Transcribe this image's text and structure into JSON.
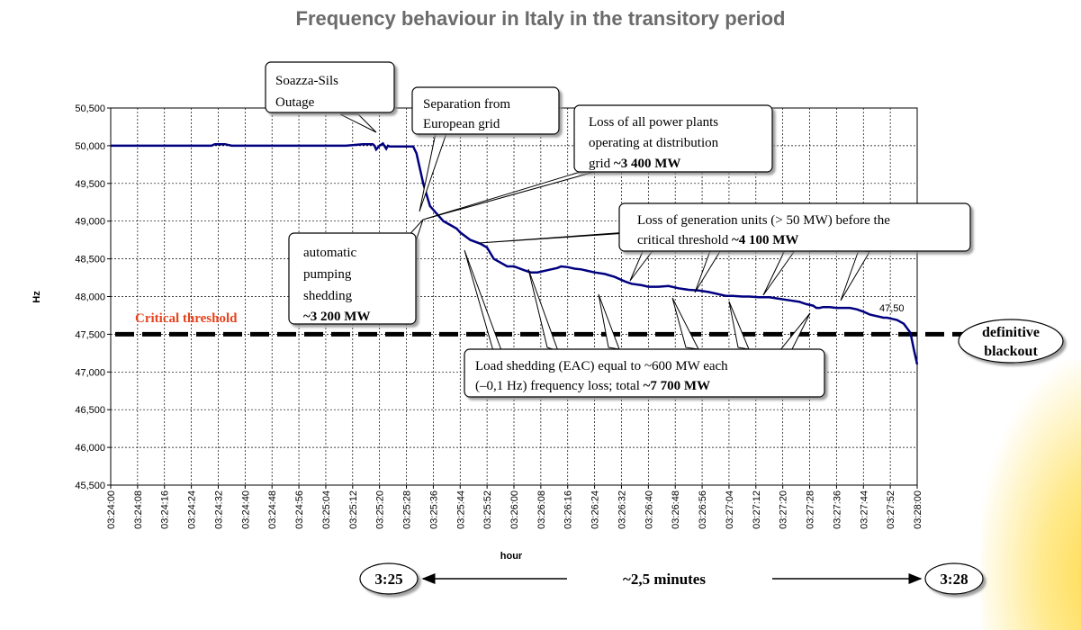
{
  "title": "Frequency behaviour in Italy in the transitory period",
  "chart_data": {
    "type": "line",
    "xlabel": "hour",
    "ylabel": "Hz",
    "ylim": [
      45500,
      50500
    ],
    "yticks": [
      "45,500",
      "46,000",
      "46,500",
      "47,000",
      "47,500",
      "48,000",
      "48,500",
      "49,000",
      "49,500",
      "50,000",
      "50,500"
    ],
    "xticks": [
      "03:24:00",
      "03:24:08",
      "03:24:16",
      "03:24:24",
      "03:24:32",
      "03:24:40",
      "03:24:48",
      "03:24:56",
      "03:25:04",
      "03:25:12",
      "03:25:20",
      "03:25:28",
      "03:25:36",
      "03:25:44",
      "03:25:52",
      "03:26:00",
      "03:26:08",
      "03:26:16",
      "03:26:24",
      "03:26:32",
      "03:26:40",
      "03:26:48",
      "03:26:56",
      "03:27:04",
      "03:27:12",
      "03:27:20",
      "03:27:28",
      "03:27:36",
      "03:27:44",
      "03:27:52",
      "03:28:00"
    ],
    "grid": true,
    "series": [
      {
        "color": "#000080",
        "x": [
          0,
          10,
          20,
          30,
          31,
          32,
          34,
          36,
          40,
          50,
          60,
          70,
          75,
          78,
          78.5,
          79,
          80,
          81,
          82,
          82.5,
          83,
          85,
          87,
          89,
          90,
          91,
          93,
          95,
          97,
          99,
          101,
          103,
          104,
          107,
          110,
          112,
          114,
          116,
          118,
          120,
          123,
          125,
          127,
          130,
          133,
          134,
          136,
          138,
          140,
          142,
          144,
          147,
          150,
          151,
          153,
          155,
          158,
          160,
          163,
          166,
          169,
          172,
          175,
          178,
          180,
          183,
          185,
          188,
          190,
          193,
          196,
          199,
          202,
          205,
          207,
          209,
          210,
          211,
          212,
          214,
          216,
          218,
          220,
          222,
          224,
          226,
          228,
          229,
          230,
          231,
          232,
          234,
          236,
          237,
          238
        ],
        "y": [
          50000,
          50000,
          50000,
          50000,
          50020,
          50020,
          50020,
          50000,
          50000,
          50000,
          50000,
          50000,
          50020,
          50020,
          50000,
          49950,
          50000,
          50030,
          49960,
          50000,
          49990,
          49990,
          49990,
          49990,
          49990,
          49900,
          49500,
          49200,
          49100,
          49000,
          48950,
          48900,
          48850,
          48750,
          48700,
          48650,
          48500,
          48450,
          48400,
          48400,
          48350,
          48320,
          48320,
          48350,
          48380,
          48400,
          48390,
          48370,
          48360,
          48340,
          48320,
          48300,
          48260,
          48240,
          48200,
          48170,
          48150,
          48130,
          48130,
          48140,
          48110,
          48090,
          48080,
          48060,
          48040,
          48010,
          48010,
          48000,
          48000,
          47990,
          47990,
          47970,
          47950,
          47930,
          47900,
          47880,
          47850,
          47850,
          47860,
          47860,
          47850,
          47850,
          47850,
          47830,
          47800,
          47760,
          47740,
          47730,
          47720,
          47720,
          47710,
          47690,
          47640,
          47580,
          47520
        ]
      }
    ],
    "threshold": {
      "value": 47500,
      "label": "Critical threshold"
    },
    "annotations": {
      "soazza_line1": "Soazza-Sils",
      "soazza_line2": "Outage",
      "separation_line1": "Separation from",
      "separation_line2": "European grid",
      "loss_plants_line1": "Loss of all power plants",
      "loss_plants_line2": "operating at distribution",
      "loss_plants_line3": "grid ",
      "loss_plants_bold": "~3 400 MW",
      "pumping_line1": "automatic",
      "pumping_line2": "pumping",
      "pumping_line3": "shedding",
      "pumping_bold": "~3 200 MW",
      "generation_line1": "Loss of generation units (> 50 MW) before the",
      "generation_line2": "critical threshold ",
      "generation_bold": "~4 100 MW",
      "load_line1": "Load shedding (EAC) equal to ~600 MW each",
      "load_line2": "(–0,1 Hz) frequency loss; total ",
      "load_bold": "~7 700 MW",
      "final_value": "47,50",
      "blackout_line1": "definitive",
      "blackout_line2": "blackout"
    }
  },
  "timeline": {
    "start": "3:25",
    "duration": "~2,5 minutes",
    "end": "3:28"
  }
}
